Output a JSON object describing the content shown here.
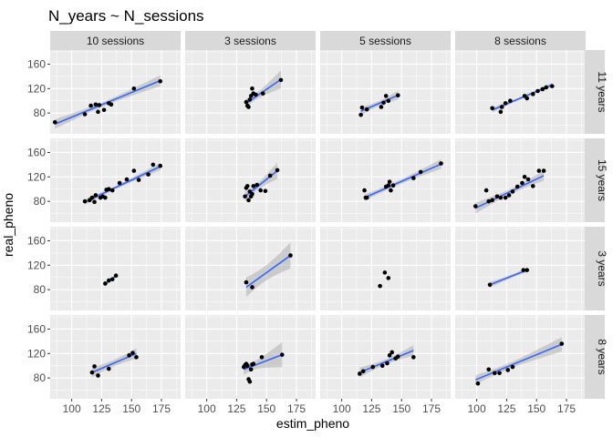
{
  "chart_data": {
    "type": "scatter",
    "title": "N_years ~ N_sessions",
    "xlabel": "estim_pheno",
    "ylabel": "real_pheno",
    "xlim": [
      82,
      191
    ],
    "ylim": [
      46,
      183
    ],
    "x_ticks": [
      100,
      125,
      150,
      175
    ],
    "y_ticks": [
      80,
      120,
      160
    ],
    "grid": true,
    "legend": "none",
    "col_strips": [
      "10 sessions",
      "3 sessions",
      "5 sessions",
      "8 sessions"
    ],
    "row_strips": [
      "11 years",
      "15 years",
      "3 years",
      "8 years"
    ],
    "colors": {
      "panel_bg": "#ebebeb",
      "grid": "#ffffff",
      "strip_bg": "#d9d9d9",
      "point": "#000000",
      "fit_line": "#3366ff",
      "ribbon": "#999999"
    },
    "panels": [
      {
        "row": "11 years",
        "col": "10 sessions",
        "points": [
          [
            86,
            65
          ],
          [
            111,
            78
          ],
          [
            116,
            92
          ],
          [
            120,
            94
          ],
          [
            122,
            82
          ],
          [
            123,
            93
          ],
          [
            127,
            85
          ],
          [
            131,
            96
          ],
          [
            133,
            94
          ],
          [
            152,
            120
          ],
          [
            174,
            132
          ]
        ],
        "fit": [
          [
            86,
            62
          ],
          [
            174,
            133
          ]
        ]
      },
      {
        "row": "11 years",
        "col": "3 sessions",
        "points": [
          [
            133,
            98
          ],
          [
            134,
            92
          ],
          [
            135,
            90
          ],
          [
            136,
            102
          ],
          [
            137,
            108
          ],
          [
            138,
            120
          ],
          [
            139,
            112
          ],
          [
            141,
            110
          ],
          [
            147,
            112
          ],
          [
            162,
            134
          ]
        ],
        "fit": [
          [
            133,
            96
          ],
          [
            162,
            135
          ]
        ]
      },
      {
        "row": "11 years",
        "col": "5 sessions",
        "points": [
          [
            116,
            77
          ],
          [
            117,
            89
          ],
          [
            121,
            86
          ],
          [
            133,
            90
          ],
          [
            135,
            97
          ],
          [
            137,
            108
          ],
          [
            139,
            100
          ],
          [
            147,
            109
          ]
        ],
        "fit": [
          [
            116,
            83
          ],
          [
            147,
            109
          ]
        ]
      },
      {
        "row": "11 years",
        "col": "8 sessions",
        "points": [
          [
            113,
            88
          ],
          [
            120,
            82
          ],
          [
            121,
            90
          ],
          [
            124,
            96
          ],
          [
            128,
            100
          ],
          [
            140,
            108
          ],
          [
            142,
            104
          ],
          [
            147,
            111
          ],
          [
            151,
            116
          ],
          [
            155,
            119
          ],
          [
            158,
            122
          ],
          [
            163,
            124
          ]
        ],
        "fit": [
          [
            113,
            85
          ],
          [
            163,
            126
          ]
        ]
      },
      {
        "row": "15 years",
        "col": "10 sessions",
        "points": [
          [
            111,
            80
          ],
          [
            115,
            82
          ],
          [
            117,
            86
          ],
          [
            119,
            79
          ],
          [
            120,
            90
          ],
          [
            124,
            86
          ],
          [
            126,
            88
          ],
          [
            128,
            86
          ],
          [
            129,
            99
          ],
          [
            131,
            100
          ],
          [
            134,
            98
          ],
          [
            140,
            110
          ],
          [
            146,
            116
          ],
          [
            152,
            130
          ],
          [
            156,
            115
          ],
          [
            164,
            124
          ],
          [
            168,
            140
          ],
          [
            174,
            138
          ]
        ],
        "fit": [
          [
            111,
            79
          ],
          [
            174,
            137
          ]
        ]
      },
      {
        "row": "15 years",
        "col": "3 sessions",
        "points": [
          [
            132,
            88
          ],
          [
            133,
            102
          ],
          [
            134,
            105
          ],
          [
            135,
            82
          ],
          [
            136,
            96
          ],
          [
            137,
            88
          ],
          [
            138,
            92
          ],
          [
            139,
            105
          ],
          [
            142,
            107
          ],
          [
            145,
            98
          ],
          [
            149,
            97
          ],
          [
            153,
            122
          ],
          [
            159,
            131
          ]
        ],
        "fit": [
          [
            132,
            88
          ],
          [
            159,
            130
          ]
        ]
      },
      {
        "row": "15 years",
        "col": "5 sessions",
        "points": [
          [
            119,
            98
          ],
          [
            120,
            86
          ],
          [
            121,
            86
          ],
          [
            137,
            104
          ],
          [
            139,
            106
          ],
          [
            140,
            112
          ],
          [
            141,
            98
          ],
          [
            143,
            106
          ],
          [
            160,
            118
          ],
          [
            166,
            128
          ],
          [
            183,
            142
          ]
        ],
        "fit": [
          [
            119,
            86
          ],
          [
            183,
            141
          ]
        ]
      },
      {
        "row": "15 years",
        "col": "8 sessions",
        "points": [
          [
            99,
            72
          ],
          [
            108,
            98
          ],
          [
            110,
            80
          ],
          [
            113,
            82
          ],
          [
            117,
            88
          ],
          [
            120,
            86
          ],
          [
            124,
            86
          ],
          [
            127,
            90
          ],
          [
            130,
            96
          ],
          [
            134,
            104
          ],
          [
            138,
            110
          ],
          [
            140,
            120
          ],
          [
            143,
            116
          ],
          [
            147,
            105
          ],
          [
            152,
            130
          ],
          [
            156,
            130
          ]
        ],
        "fit": [
          [
            99,
            69
          ],
          [
            156,
            122
          ]
        ]
      },
      {
        "row": "3 years",
        "col": "10 sessions",
        "points": [
          [
            128,
            90
          ],
          [
            131,
            95
          ],
          [
            134,
            97
          ],
          [
            137,
            103
          ]
        ],
        "fit": [
          [
            128,
            89
          ],
          [
            137,
            103
          ]
        ]
      },
      {
        "row": "3 years",
        "col": "3 sessions",
        "points": [
          [
            133,
            92
          ],
          [
            138,
            84
          ],
          [
            170,
            136
          ]
        ],
        "fit": [
          [
            133,
            84
          ],
          [
            170,
            136
          ]
        ]
      },
      {
        "row": "3 years",
        "col": "5 sessions",
        "points": [
          [
            132,
            86
          ],
          [
            136,
            108
          ],
          [
            139,
            99
          ]
        ],
        "fit": []
      },
      {
        "row": "3 years",
        "col": "8 sessions",
        "points": [
          [
            111,
            88
          ],
          [
            139,
            112
          ],
          [
            142,
            112
          ]
        ],
        "fit": [
          [
            111,
            88
          ],
          [
            142,
            112
          ]
        ]
      },
      {
        "row": "8 years",
        "col": "10 sessions",
        "points": [
          [
            117,
            89
          ],
          [
            119,
            99
          ],
          [
            122,
            84
          ],
          [
            131,
            95
          ],
          [
            148,
            117
          ],
          [
            151,
            121
          ],
          [
            154,
            114
          ]
        ],
        "fit": [
          [
            117,
            89
          ],
          [
            154,
            120
          ]
        ]
      },
      {
        "row": "8 years",
        "col": "3 sessions",
        "points": [
          [
            131,
            98
          ],
          [
            132,
            101
          ],
          [
            133,
            103
          ],
          [
            134,
            100
          ],
          [
            135,
            78
          ],
          [
            136,
            74
          ],
          [
            137,
            94
          ],
          [
            138,
            102
          ],
          [
            139,
            103
          ],
          [
            146,
            114
          ],
          [
            163,
            118
          ]
        ],
        "fit": [
          [
            131,
            94
          ],
          [
            163,
            118
          ]
        ]
      },
      {
        "row": "8 years",
        "col": "5 sessions",
        "points": [
          [
            115,
            87
          ],
          [
            118,
            91
          ],
          [
            126,
            98
          ],
          [
            134,
            100
          ],
          [
            138,
            104
          ],
          [
            140,
            117
          ],
          [
            142,
            122
          ],
          [
            145,
            112
          ],
          [
            147,
            115
          ],
          [
            160,
            114
          ]
        ],
        "fit": [
          [
            115,
            89
          ],
          [
            160,
            125
          ]
        ]
      },
      {
        "row": "8 years",
        "col": "8 sessions",
        "points": [
          [
            101,
            71
          ],
          [
            110,
            94
          ],
          [
            115,
            88
          ],
          [
            119,
            88
          ],
          [
            126,
            93
          ],
          [
            130,
            98
          ],
          [
            171,
            136
          ]
        ],
        "fit": [
          [
            99,
            77
          ],
          [
            171,
            135
          ]
        ]
      }
    ]
  }
}
